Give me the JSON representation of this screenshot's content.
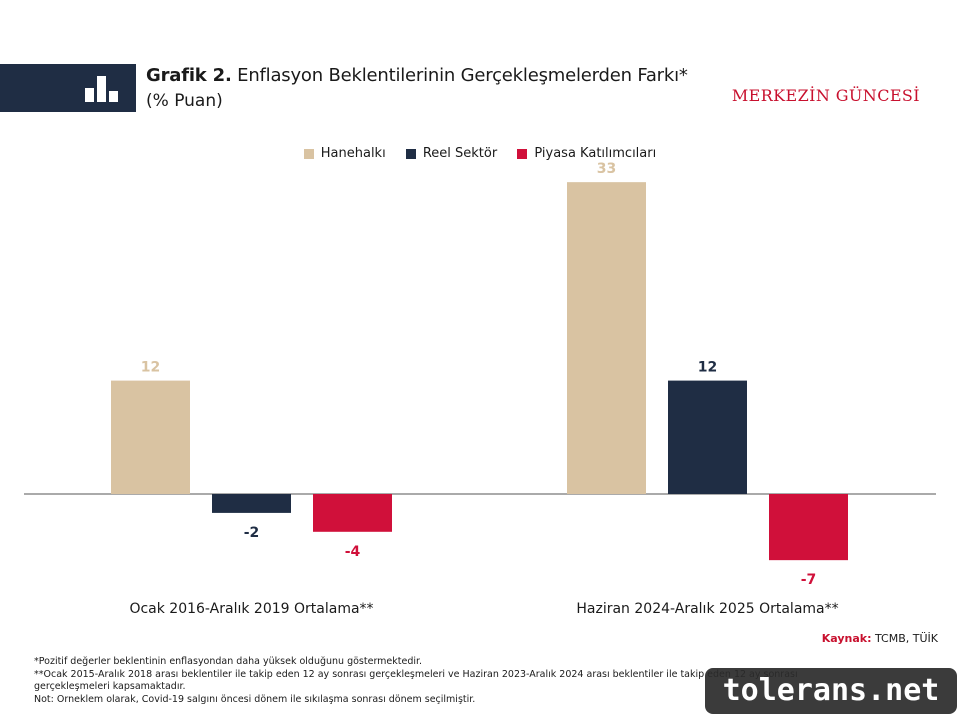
{
  "header": {
    "title_bold": "Grafik 2.",
    "title_rest": "Enflasyon Beklentilerinin Gerçekleşmelerden Farkı*",
    "subtitle": "(% Puan)",
    "brand": "MERKEZİN GÜNCESİ"
  },
  "colors": {
    "hanehalki": "#d9c3a2",
    "reel": "#1f2d44",
    "piyasa": "#d0103a",
    "axis": "#555555"
  },
  "chart_data": {
    "type": "bar",
    "categories": [
      "Ocak 2016-Aralık 2019 Ortalama**",
      "Haziran 2024-Aralık 2025 Ortalama**"
    ],
    "series": [
      {
        "name": "Hanehalkı",
        "values": [
          12,
          33
        ],
        "color": "#d9c3a2"
      },
      {
        "name": "Reel Sektör",
        "values": [
          -2,
          12
        ],
        "color": "#1f2d44"
      },
      {
        "name": "Piyasa Katılımcıları",
        "values": [
          -4,
          -7
        ],
        "color": "#d0103a"
      }
    ],
    "data_labels": [
      [
        "12",
        "33"
      ],
      [
        "-2",
        "12"
      ],
      [
        "-4",
        "-7"
      ]
    ],
    "ylim": [
      -9,
      34
    ],
    "grid": false,
    "legend_position": "top-center"
  },
  "source": {
    "label": "Kaynak:",
    "text": "TCMB, TÜİK"
  },
  "notes": [
    "*Pozitif değerler beklentinin enflasyondan daha yüksek olduğunu göstermektedir.",
    "**Ocak 2015-Aralık 2018 arası beklentiler ile takip eden 12 ay sonrası gerçekleşmeleri ve Haziran 2023-Aralık 2024 arası beklentiler ile takip eden 12 ay sonrası",
    "gerçekleşmeleri kapsamaktadır.",
    "Not: Örneklem olarak, Covid-19 salgını öncesi dönem ile sıkılaşma sonrası dönem seçilmiştir."
  ],
  "watermark": "tolerans.net"
}
